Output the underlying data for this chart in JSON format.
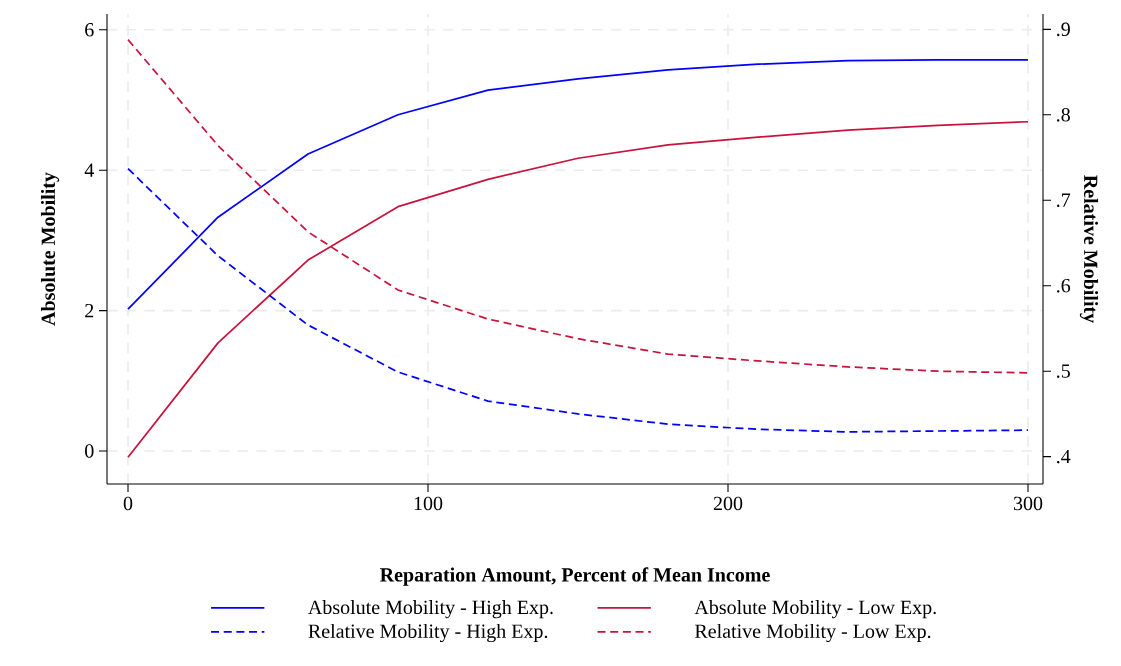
{
  "chart_data": {
    "type": "line",
    "xlabel": "Reparation Amount, Percent of Mean Income",
    "ylabel": "Absolute Mobility",
    "y2label": "Relative Mobility",
    "x": [
      0,
      30,
      60,
      90,
      120,
      150,
      180,
      210,
      240,
      270,
      300
    ],
    "series": [
      {
        "name": "Absolute Mobility - High Exp.",
        "color": "#0000ff",
        "line_style": "solid",
        "values": [
          2.02,
          3.33,
          4.23,
          4.79,
          5.14,
          5.3,
          5.43,
          5.51,
          5.56,
          5.57,
          5.57
        ]
      },
      {
        "name": "Absolute Mobility - Low Exp.",
        "color": "#c8143c",
        "line_style": "solid",
        "values": [
          -0.09,
          1.54,
          2.72,
          3.48,
          3.87,
          4.17,
          4.36,
          4.47,
          4.57,
          4.64,
          4.69
        ]
      },
      {
        "name": "Relative Mobility - High Exp.",
        "color": "#0000ff",
        "line_style": "dashed",
        "axis": "y2",
        "values": [
          0.737,
          0.635,
          0.554,
          0.499,
          0.465,
          0.45,
          0.438,
          0.432,
          0.429,
          0.43,
          0.431
        ]
      },
      {
        "name": "Relative Mobility - Low Exp.",
        "color": "#c8143c",
        "line_style": "dashed",
        "axis": "y2",
        "values": [
          0.888,
          0.764,
          0.663,
          0.595,
          0.561,
          0.538,
          0.52,
          0.512,
          0.505,
          0.5,
          0.498
        ]
      }
    ],
    "xlim": [
      -7,
      305
    ],
    "ylim": [
      -0.47,
      6.225
    ],
    "y2lim": [
      0.368,
      0.918
    ],
    "xticks": [
      0,
      100,
      200,
      300
    ],
    "yticks": [
      0,
      2,
      4,
      6
    ],
    "y2ticks": [
      {
        "value": 0.4,
        "label": ".4"
      },
      {
        "value": 0.5,
        "label": ".5"
      },
      {
        "value": 0.6,
        "label": ".6"
      },
      {
        "value": 0.7,
        "label": ".7"
      },
      {
        "value": 0.8,
        "label": ".8"
      },
      {
        "value": 0.9,
        "label": ".9"
      }
    ],
    "grid": true,
    "legend": "bottom",
    "marker": "none"
  }
}
